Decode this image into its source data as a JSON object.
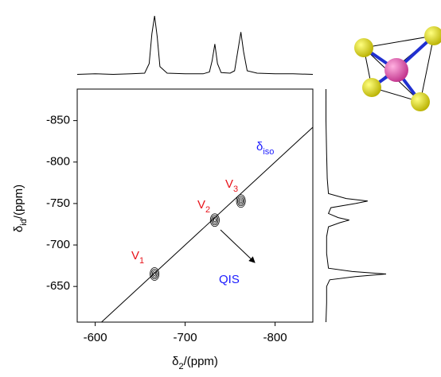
{
  "chart_data": {
    "type": "contour2d",
    "x_label": {
      "symbol": "δ",
      "sub": "2",
      "unit": "/(ppm)"
    },
    "y_label": {
      "symbol": "δ",
      "sub": "id",
      "unit": "/(ppm)"
    },
    "xlim": [
      -580,
      -842
    ],
    "ylim": [
      -607,
      -888
    ],
    "xticks": [
      -600,
      -700,
      -800
    ],
    "yticks": [
      -650,
      -700,
      -750,
      -800,
      -850
    ],
    "peaks": [
      {
        "name": {
          "base": "V",
          "sub": "1"
        },
        "x": -666,
        "y": -665
      },
      {
        "name": {
          "base": "V",
          "sub": "2"
        },
        "x": -733,
        "y": -730
      },
      {
        "name": {
          "base": "V",
          "sub": "3"
        },
        "x": -762,
        "y": -753
      }
    ],
    "peak_label_color": "#e8141b",
    "iso_label": {
      "symbol": "δ",
      "sub": "iso"
    },
    "qis_label": "QIS",
    "annotation_color": "#1a1aff",
    "top_projection": {
      "x": [
        -580,
        -600,
        -620,
        -640,
        -655,
        -660,
        -663,
        -666,
        -669,
        -672,
        -680,
        -700,
        -720,
        -727,
        -730,
        -733,
        -736,
        -740,
        -750,
        -755,
        -759,
        -762,
        -765,
        -769,
        -780,
        -800,
        -820,
        -842
      ],
      "values": [
        2,
        3,
        2,
        3,
        4,
        20,
        70,
        100,
        65,
        15,
        4,
        3,
        3,
        6,
        25,
        53,
        20,
        5,
        4,
        8,
        45,
        73,
        40,
        8,
        4,
        3,
        3,
        2
      ]
    },
    "right_projection": {
      "y": [
        -607,
        -630,
        -650,
        -658,
        -662,
        -665,
        -668,
        -672,
        -690,
        -710,
        -722,
        -727,
        -730,
        -733,
        -738,
        -745,
        -750,
        -753,
        -756,
        -762,
        -780,
        -810,
        -850,
        -888
      ],
      "values": [
        2,
        3,
        3,
        8,
        50,
        100,
        45,
        6,
        3,
        3,
        6,
        25,
        40,
        22,
        6,
        10,
        50,
        70,
        35,
        6,
        4,
        3,
        2,
        2
      ]
    }
  }
}
